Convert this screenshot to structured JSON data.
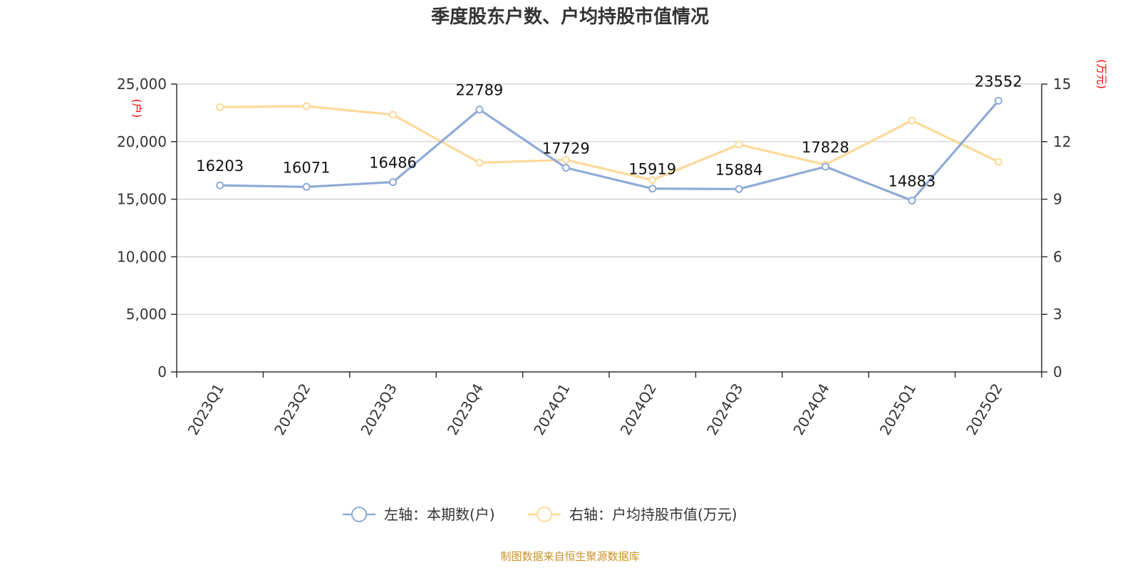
{
  "chart_data": {
    "type": "line",
    "title": "季度股东户数、户均持股市值情况",
    "categories": [
      "2023Q1",
      "2023Q2",
      "2023Q3",
      "2023Q4",
      "2024Q1",
      "2024Q2",
      "2024Q3",
      "2024Q4",
      "2025Q1",
      "2025Q2"
    ],
    "left_axis": {
      "unit": "(户)",
      "ylim": [
        0,
        25000
      ],
      "ticks": [
        0,
        5000,
        10000,
        15000,
        20000,
        25000
      ],
      "tick_labels": [
        "0",
        "5,000",
        "10,000",
        "15,000",
        "20,000",
        "25,000"
      ]
    },
    "right_axis": {
      "unit": "(万元)",
      "ylim": [
        0,
        15
      ],
      "ticks": [
        0,
        3,
        6,
        9,
        12,
        15
      ],
      "tick_labels": [
        "0",
        "3",
        "6",
        "9",
        "12",
        "15"
      ]
    },
    "series": [
      {
        "name": "左轴：本期数(户)",
        "axis": "left",
        "color": "#8eaad6",
        "values": [
          16203,
          16071,
          16486,
          22789,
          17729,
          15919,
          15884,
          17828,
          14883,
          23552
        ],
        "labels": [
          "16203",
          "16071",
          "16486",
          "22789",
          "17729",
          "15919",
          "15884",
          "17828",
          "14883",
          "23552"
        ]
      },
      {
        "name": "右轴：户均持股市值(万元)",
        "axis": "right",
        "color": "#fcd99a",
        "values": [
          13.8,
          13.85,
          13.4,
          10.9,
          11.05,
          10.0,
          11.85,
          10.8,
          13.1,
          10.95
        ]
      }
    ],
    "grid": true,
    "legend_position": "bottom"
  },
  "source_text": "制图数据来自恒生聚源数据库"
}
